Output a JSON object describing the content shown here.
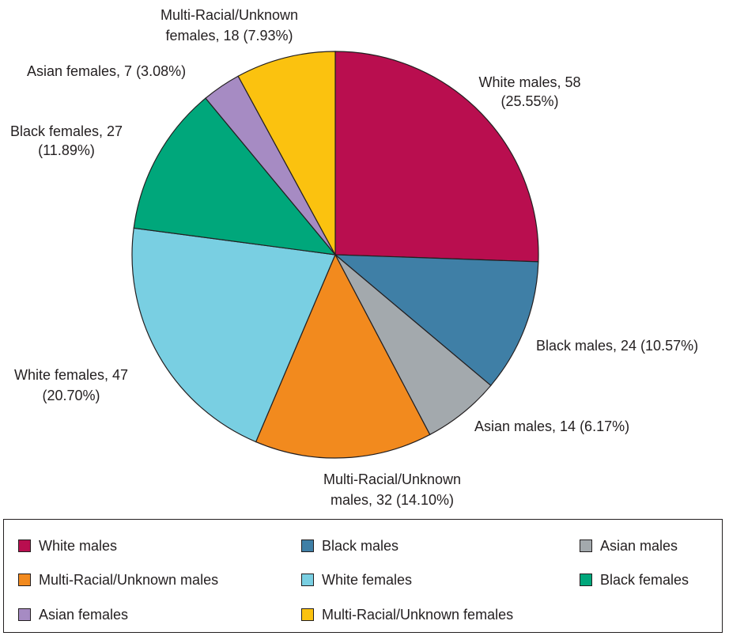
{
  "chart_data": {
    "type": "pie",
    "title": "",
    "slices": [
      {
        "name": "White males",
        "value": 58,
        "percent": 25.55,
        "color": "#b90e4f",
        "label": [
          "White males, 58",
          "(25.55%)"
        ]
      },
      {
        "name": "Black males",
        "value": 24,
        "percent": 10.57,
        "color": "#3f7fa6",
        "label": [
          "Black males, 24 (10.57%)"
        ]
      },
      {
        "name": "Asian males",
        "value": 14,
        "percent": 6.17,
        "color": "#a3a9ad",
        "label": [
          "Asian males, 14 (6.17%)"
        ]
      },
      {
        "name": "Multi-Racial/Unknown males",
        "value": 32,
        "percent": 14.1,
        "color": "#f28a1e",
        "label": [
          "Multi-Racial/Unknown",
          "males, 32 (14.10%)"
        ]
      },
      {
        "name": "White females",
        "value": 47,
        "percent": 20.7,
        "color": "#79cfe2",
        "label": [
          "White females, 47",
          "(20.70%)"
        ]
      },
      {
        "name": "Black females",
        "value": 27,
        "percent": 11.89,
        "color": "#00a77b",
        "label": [
          "Black females, 27",
          "(11.89%)"
        ]
      },
      {
        "name": "Asian females",
        "value": 7,
        "percent": 3.08,
        "color": "#a68bc3",
        "label": [
          "Asian females, 7 (3.08%)"
        ]
      },
      {
        "name": "Multi-Racial/Unknown females",
        "value": 18,
        "percent": 7.93,
        "color": "#fbc20f",
        "label": [
          "Multi-Racial/Unknown",
          "females, 18 (7.93%)"
        ]
      }
    ],
    "start_angle": "12 o'clock",
    "direction": "clockwise",
    "legend": {
      "placement": "bottom",
      "columns": 3,
      "items": [
        "White males",
        "Black males",
        "Asian males",
        "Multi-Racial/Unknown males",
        "White females",
        "Black females",
        "Asian females",
        "Multi-Racial/Unknown females"
      ]
    }
  }
}
